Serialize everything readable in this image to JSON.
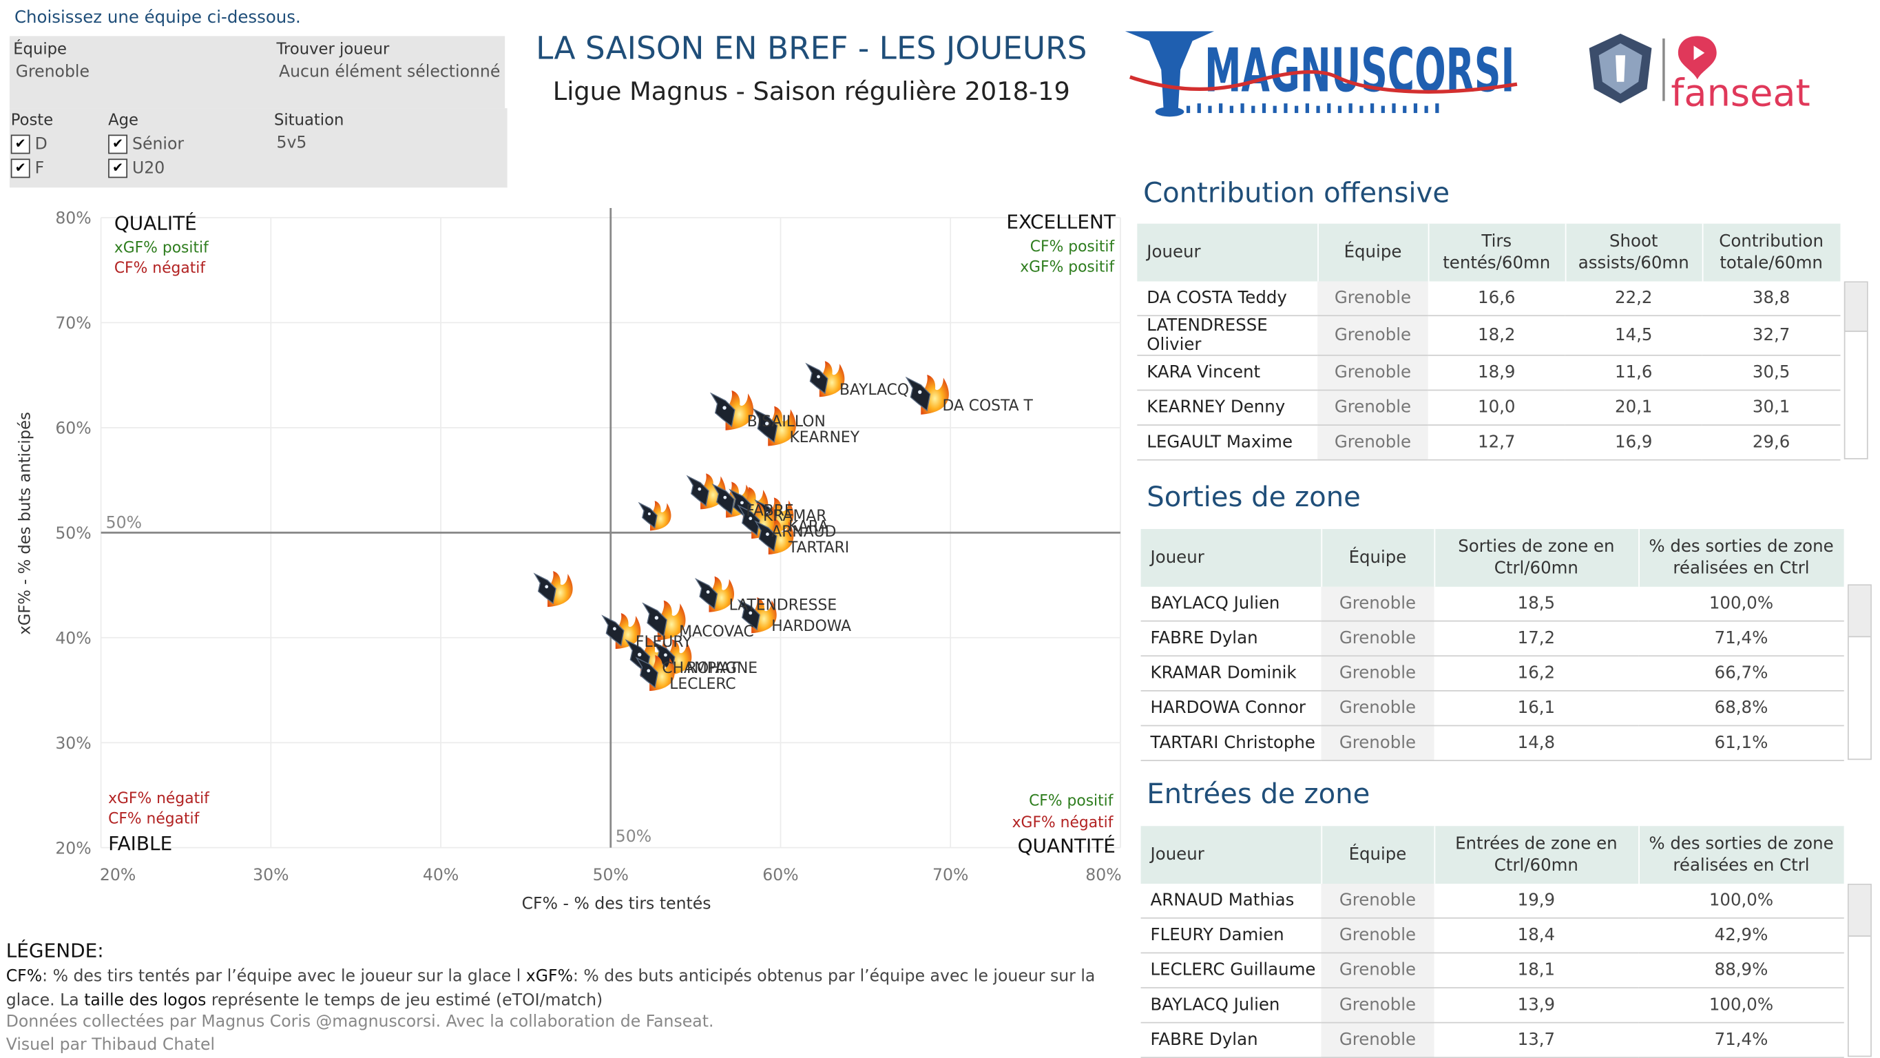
{
  "filters": {
    "hint": "Choisissez une équipe ci-dessous.",
    "team_label": "Équipe",
    "team_value": "Grenoble",
    "player_label": "Trouver joueur",
    "player_value": "Aucun élément sélectionné",
    "position_label": "Poste",
    "position_options": [
      "D",
      "F"
    ],
    "age_label": "Age",
    "age_options": [
      "Sénior",
      "U20"
    ],
    "situation_label": "Situation",
    "situation_value": "5v5"
  },
  "header": {
    "title": "LA SAISON EN BREF - LES JOUEURS",
    "subtitle": "Ligue Magnus - Saison régulière 2018-19",
    "logo_text": "MAGNUSCORSI",
    "partner_logo_text": "fanseat"
  },
  "chart_data": {
    "type": "scatter",
    "xlabel": "CF% - % des tirs tentés",
    "ylabel": "xGF% - % des buts anticipés",
    "xlim": [
      20,
      80
    ],
    "ylim": [
      20,
      80
    ],
    "xticks": [
      "20%",
      "30%",
      "40%",
      "50%",
      "60%",
      "70%",
      "80%"
    ],
    "yticks": [
      "20%",
      "30%",
      "40%",
      "50%",
      "60%",
      "70%",
      "80%"
    ],
    "reference_lines": {
      "x": 50,
      "y": 50,
      "x_label": "50%",
      "y_label": "50%"
    },
    "grid": true,
    "quadrants": {
      "top_left": {
        "title": "QUALITÉ",
        "lines": [
          {
            "text": "xGF% positif",
            "color": "#2e7d1e"
          },
          {
            "text": "CF% négatif",
            "color": "#b22222"
          }
        ]
      },
      "top_right": {
        "title": "EXCELLENT",
        "lines": [
          {
            "text": "CF% positif",
            "color": "#2e7d1e"
          },
          {
            "text": "xGF% positif",
            "color": "#2e7d1e"
          }
        ]
      },
      "bottom_left": {
        "title": "FAIBLE",
        "lines": [
          {
            "text": "xGF% négatif",
            "color": "#b22222"
          },
          {
            "text": "CF% négatif",
            "color": "#b22222"
          }
        ]
      },
      "bottom_right": {
        "title": "QUANTITÉ",
        "lines": [
          {
            "text": "CF% positif",
            "color": "#2e7d1e"
          },
          {
            "text": "xGF% négatif",
            "color": "#b22222"
          }
        ]
      }
    },
    "points": [
      {
        "label": "DA COSTA T",
        "x": 68.5,
        "y": 63.0,
        "size": 1.0
      },
      {
        "label": "BAYLACQ",
        "x": 62.5,
        "y": 64.5,
        "size": 0.9
      },
      {
        "label": "BISAILLON",
        "x": 57.0,
        "y": 61.5,
        "size": 1.0
      },
      {
        "label": "KEARNEY",
        "x": 59.5,
        "y": 60.0,
        "size": 1.0
      },
      {
        "label": "",
        "x": 52.5,
        "y": 51.5,
        "size": 0.75
      },
      {
        "label": "",
        "x": 55.5,
        "y": 53.8,
        "size": 0.9
      },
      {
        "label": "FABRE",
        "x": 57.0,
        "y": 53.0,
        "size": 0.9
      },
      {
        "label": "KRAMAR",
        "x": 58.0,
        "y": 52.5,
        "size": 0.9
      },
      {
        "label": "KARA",
        "x": 59.5,
        "y": 51.5,
        "size": 0.9
      },
      {
        "label": "ARNAUD",
        "x": 58.5,
        "y": 51.0,
        "size": 0.9
      },
      {
        "label": "TARTARI",
        "x": 59.5,
        "y": 49.5,
        "size": 0.9
      },
      {
        "label": "",
        "x": 46.5,
        "y": 44.5,
        "size": 0.9
      },
      {
        "label": "LATENDRESSE",
        "x": 56.0,
        "y": 44.0,
        "size": 0.9
      },
      {
        "label": "HARDOWA",
        "x": 58.5,
        "y": 42.0,
        "size": 0.9
      },
      {
        "label": "FLEURY",
        "x": 50.5,
        "y": 40.5,
        "size": 0.9
      },
      {
        "label": "MACOVAC",
        "x": 53.0,
        "y": 41.5,
        "size": 1.0
      },
      {
        "label": "CHAMPAGNE",
        "x": 52.0,
        "y": 38.0,
        "size": 1.0
      },
      {
        "label": "ROHAT",
        "x": 53.5,
        "y": 38.0,
        "size": 0.9
      },
      {
        "label": "LECLERC",
        "x": 52.5,
        "y": 36.5,
        "size": 0.9
      }
    ]
  },
  "tables": {
    "offense": {
      "title": "Contribution offensive",
      "headers": [
        "Joueur",
        "Équipe",
        "Tirs tentés/60mn",
        "Shoot assists/60mn",
        "Contribution totale/60mn"
      ],
      "rows": [
        [
          "DA COSTA Teddy",
          "Grenoble",
          "16,6",
          "22,2",
          "38,8"
        ],
        [
          "LATENDRESSE Olivier",
          "Grenoble",
          "18,2",
          "14,5",
          "32,7"
        ],
        [
          "KARA Vincent",
          "Grenoble",
          "18,9",
          "11,6",
          "30,5"
        ],
        [
          "KEARNEY Denny",
          "Grenoble",
          "10,0",
          "20,1",
          "30,1"
        ],
        [
          "LEGAULT Maxime",
          "Grenoble",
          "12,7",
          "16,9",
          "29,6"
        ]
      ]
    },
    "exits": {
      "title": "Sorties de zone",
      "headers": [
        "Joueur",
        "Équipe",
        "Sorties de zone en Ctrl/60mn",
        "% des sorties de zone réalisées en Ctrl"
      ],
      "rows": [
        [
          "BAYLACQ Julien",
          "Grenoble",
          "18,5",
          "100,0%"
        ],
        [
          "FABRE Dylan",
          "Grenoble",
          "17,2",
          "71,4%"
        ],
        [
          "KRAMAR Dominik",
          "Grenoble",
          "16,2",
          "66,7%"
        ],
        [
          "HARDOWA Connor",
          "Grenoble",
          "16,1",
          "68,8%"
        ],
        [
          "TARTARI Christophe",
          "Grenoble",
          "14,8",
          "61,1%"
        ]
      ]
    },
    "entries": {
      "title": "Entrées de zone",
      "headers": [
        "Joueur",
        "Équipe",
        "Entrées de zone en Ctrl/60mn",
        "% des sorties de zone réalisées en Ctrl"
      ],
      "rows": [
        [
          "ARNAUD Mathias",
          "Grenoble",
          "19,9",
          "100,0%"
        ],
        [
          "FLEURY Damien",
          "Grenoble",
          "18,4",
          "42,9%"
        ],
        [
          "LECLERC Guillaume",
          "Grenoble",
          "18,1",
          "88,9%"
        ],
        [
          "BAYLACQ Julien",
          "Grenoble",
          "13,9",
          "100,0%"
        ],
        [
          "FABRE Dylan",
          "Grenoble",
          "13,7",
          "71,4%"
        ]
      ]
    }
  },
  "legend": {
    "heading": "LÉGENDE:",
    "cf_term": "CF%",
    "cf_def": ": % des tirs tentés par l’équipe avec le joueur sur la glace l ",
    "xgf_term": "xGF%",
    "xgf_def": ": % des buts anticipés obtenus par l’équipe avec le joueur sur la glace. La ",
    "size_term": "taille des logos",
    "size_def": " représente le temps de jeu estimé (eTOI/match)",
    "credit1": "Données collectées par Magnus Coris @magnuscorsi. Avec la collaboration de Fanseat.",
    "credit2": "Visuel par Thibaud Chatel"
  },
  "colors": {
    "title": "#1f4e79",
    "positive": "#2e7d1e",
    "negative": "#b22222",
    "table_header": "#e1ede9",
    "logo_blue": "#1f5fb0",
    "logo_red": "#d32f2f",
    "fanseat": "#e0385a"
  }
}
